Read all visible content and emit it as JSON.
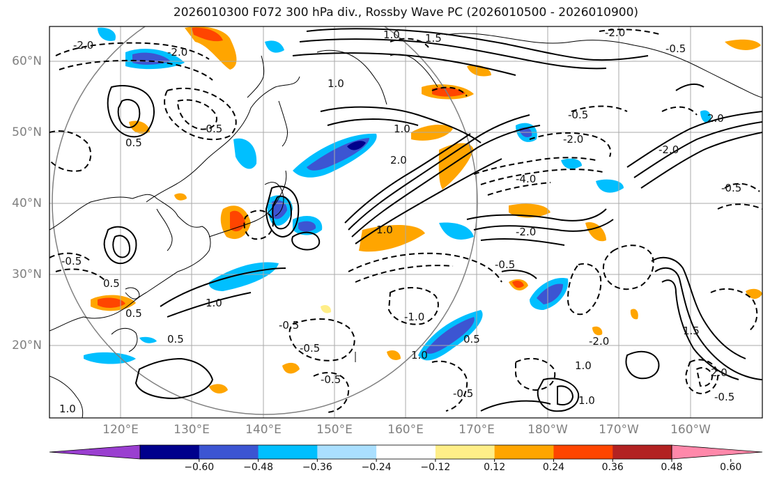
{
  "title": "2026010300 F072 300 hPa div., Rossby Wave PC (2026010500 - 2026010900)",
  "lat_ticks": [
    "60°N",
    "50°N",
    "40°N",
    "30°N",
    "20°N"
  ],
  "lon_ticks": [
    "120°E",
    "130°E",
    "140°E",
    "150°E",
    "160°E",
    "170°E",
    "180°W",
    "170°W",
    "160°W"
  ],
  "contour_labels": [
    "-2.0",
    "-2.0",
    "1.0",
    "-2.0",
    "1.5",
    "-0.5",
    "1.0",
    "-0.5",
    "2.0",
    "-2.0",
    "-0.5",
    "-2.0",
    "-4.0",
    "1.0",
    "-2.0",
    "1.0",
    "-0.5",
    "2.0",
    "-0.5",
    "0.5",
    "1.0",
    "-0.5",
    "0.5",
    "-1.0",
    "-0.5",
    "0.5",
    "1.0",
    "-0.5",
    "-0.5",
    "1.0",
    "-0.5",
    "1.0",
    "-0.5",
    "1.5",
    "2.0",
    "0.5",
    "-2.0",
    "1.0",
    "0.5"
  ],
  "colorbar": {
    "labels": [
      "−0.60",
      "−0.48",
      "−0.36",
      "−0.24",
      "−0.12",
      "0.12",
      "0.24",
      "0.36",
      "0.48",
      "0.60"
    ],
    "colors": [
      "#9a3fd0",
      "#00008c",
      "#3c55d2",
      "#00bfff",
      "#aadfff",
      "#ffffff",
      "#ffee88",
      "#ffa500",
      "#ff4500",
      "#b22222",
      "#ff88aa"
    ]
  }
}
